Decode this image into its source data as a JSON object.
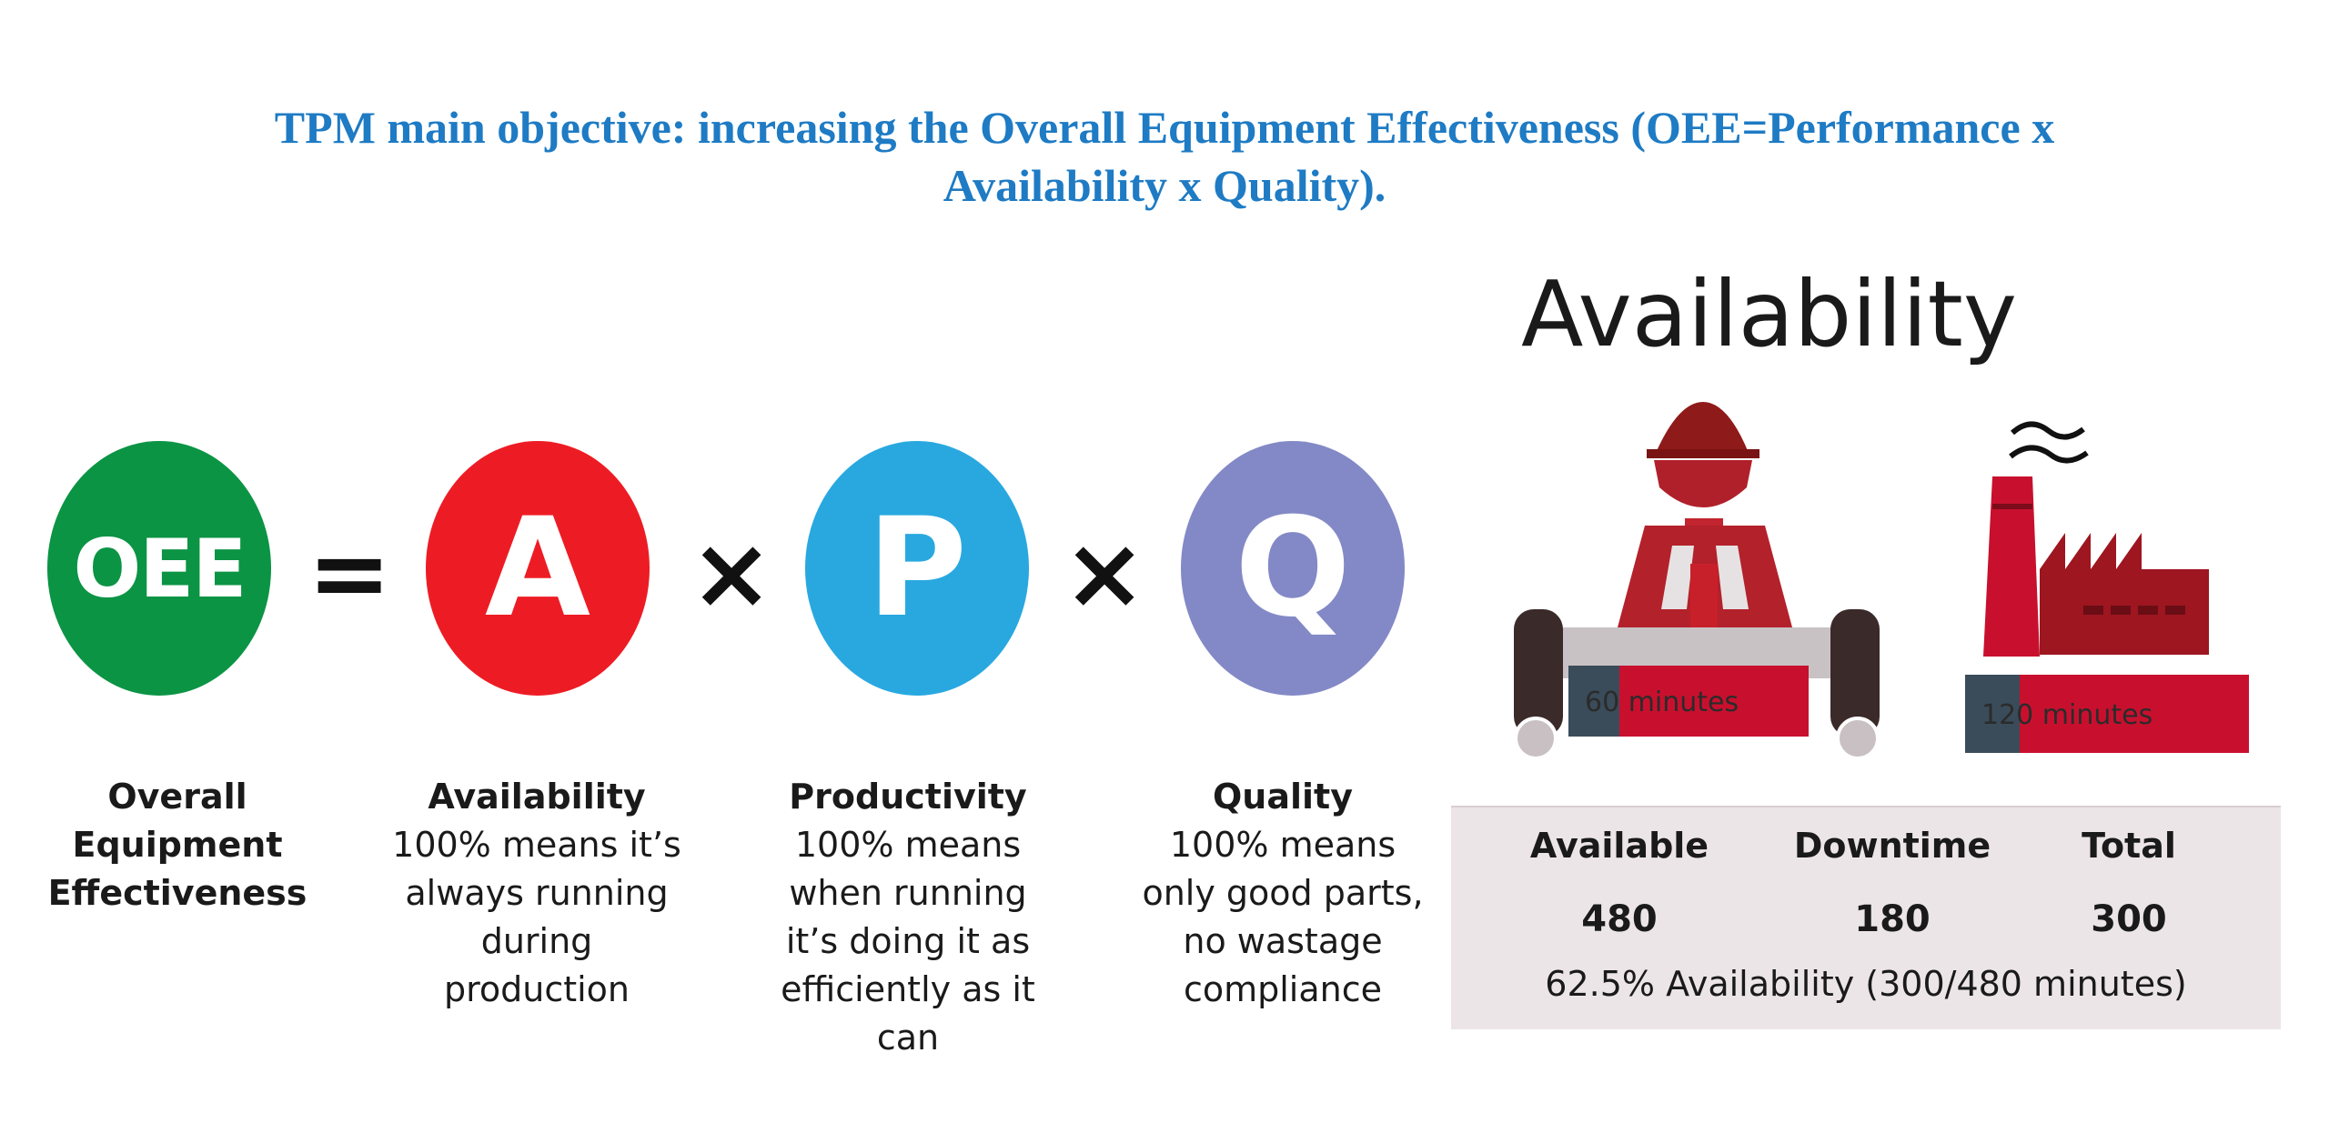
{
  "headline": {
    "line1": "TPM main objective: increasing the Overall Equipment Effectiveness (OEE=Performance x",
    "line2": "Availability x Quality)."
  },
  "formula": {
    "oee": "OEE",
    "equals": "=",
    "a": "A",
    "times1": "×",
    "p": "P",
    "times2": "×",
    "q": "Q",
    "colors": {
      "oee": "#0b9444",
      "a": "#ed1c24",
      "p": "#29a8e0",
      "q": "#8389c6"
    }
  },
  "descriptions": {
    "oee": {
      "lines": [
        "Overall",
        "Equipment",
        "Effectiveness"
      ]
    },
    "availability": {
      "title": "Availability",
      "lines": [
        "100% means it’s",
        "always running",
        "during",
        "production"
      ]
    },
    "productivity": {
      "title": "Productivity",
      "lines": [
        "100% means",
        "when running",
        "it’s doing it as",
        "efficiently as it can"
      ]
    },
    "quality": {
      "title": "Quality",
      "lines": [
        "100% means",
        "only good parts,",
        "no wastage",
        "compliance"
      ]
    }
  },
  "availability_panel": {
    "title": "Availability",
    "worker_label": "60 minutes",
    "factory_label": "120 minutes",
    "worker_icon": "worker-icon",
    "factory_icon": "factory-icon",
    "table": {
      "headers": [
        "Available",
        "Downtime",
        "Total"
      ],
      "values": [
        "480",
        "180",
        "300"
      ]
    },
    "summary": "62.5% Availability (300/480 minutes)"
  }
}
